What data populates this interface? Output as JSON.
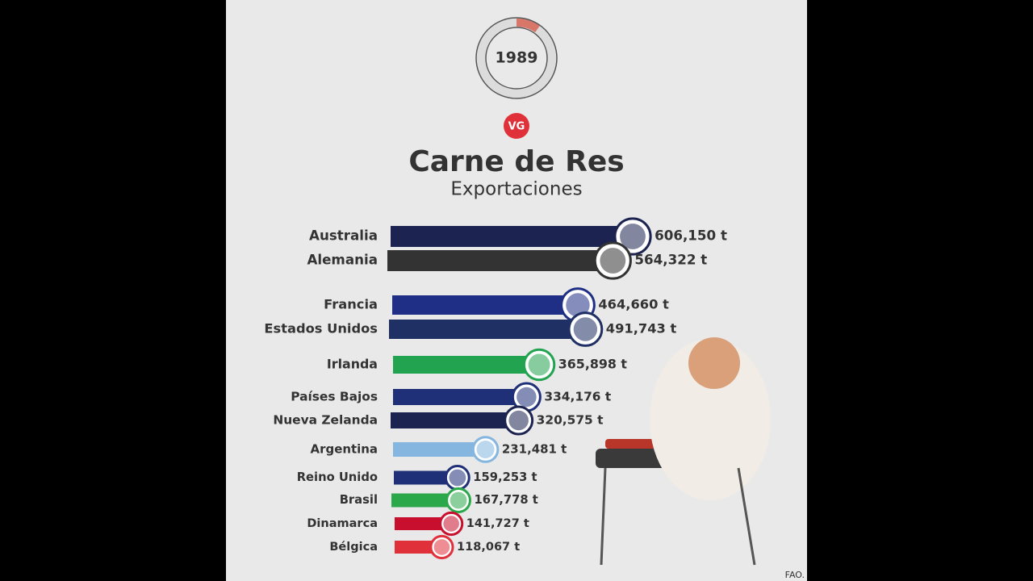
{
  "chart_data": {
    "type": "bar",
    "year": "1989",
    "logo": "VG",
    "title": "Carne de Res",
    "subtitle": "Exportaciones",
    "source": "FAO.",
    "categories": [
      "Australia",
      "Alemania",
      "Francia",
      "Estados Unidos",
      "Irlanda",
      "Países Bajos",
      "Nueva Zelanda",
      "Argentina",
      "Reino Unido",
      "Brasil",
      "Dinamarca",
      "Bélgica"
    ],
    "values": [
      606150,
      564322,
      464660,
      491743,
      365898,
      334176,
      320575,
      231481,
      159253,
      167778,
      141727,
      118067
    ],
    "value_labels": [
      "606,150 t",
      "564,322 t",
      "464,660 t",
      "491,743 t",
      "365,898 t",
      "334,176 t",
      "320,575 t",
      "231,481 t",
      "159,253 t",
      "167,778 t",
      "141,727 t",
      "118,067 t"
    ],
    "colors": [
      "#1c2350",
      "#333333",
      "#1f2f85",
      "#1e3064",
      "#22a350",
      "#1f2f78",
      "#1c2350",
      "#84b6e0",
      "#1f2f78",
      "#2aa84a",
      "#c8102e",
      "#e0303a"
    ]
  }
}
